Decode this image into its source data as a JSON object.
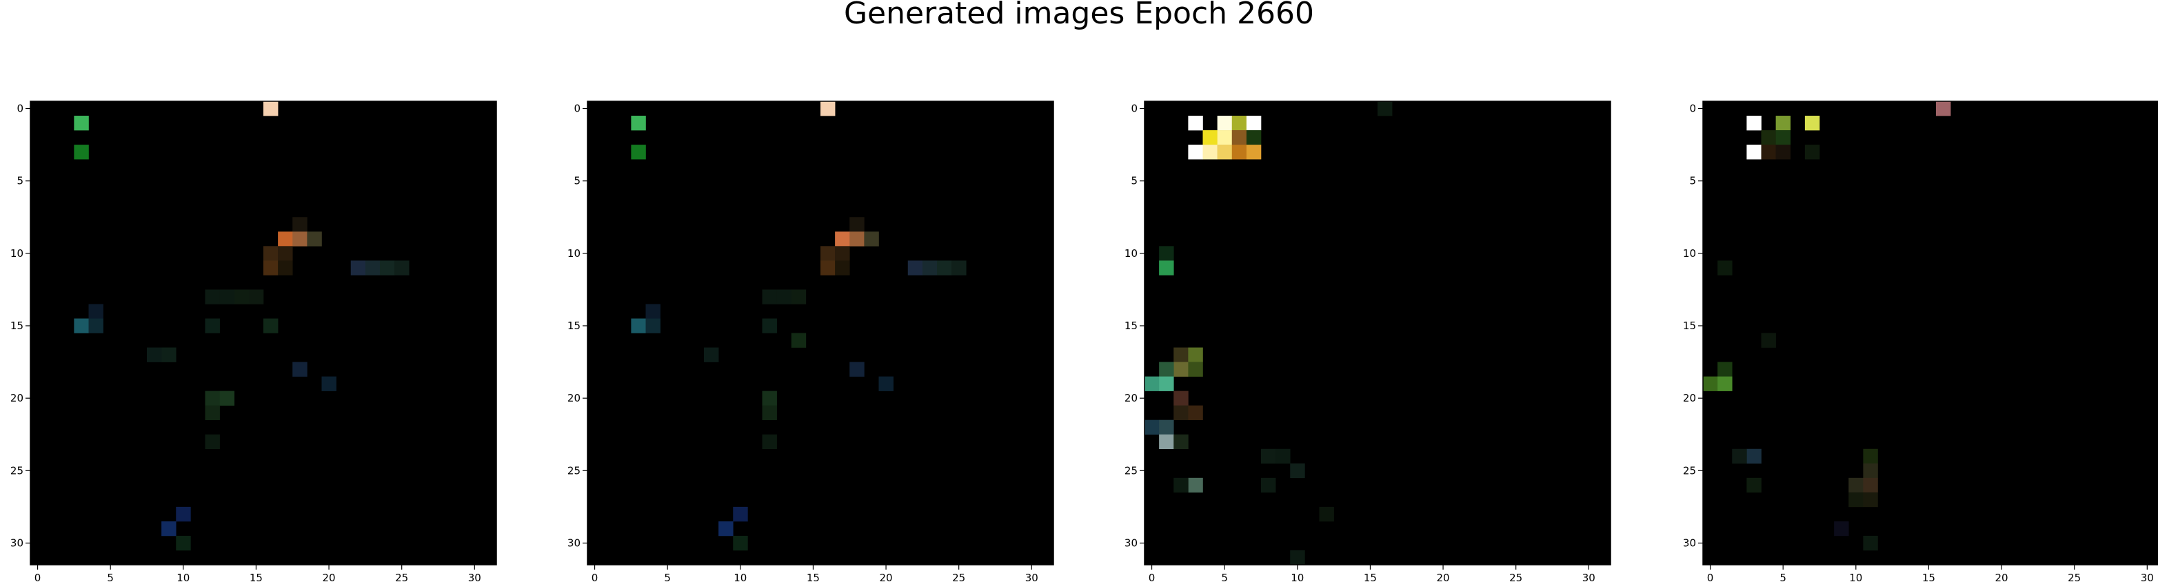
{
  "title": "Generated images Epoch 2660",
  "chart_data": [
    {
      "type": "heatmap",
      "title": "",
      "xlabel": "",
      "ylabel": "",
      "xlim": [
        -0.5,
        31.5
      ],
      "ylim": [
        31.5,
        -0.5
      ],
      "xticks": [
        0,
        5,
        10,
        15,
        20,
        25,
        30
      ],
      "yticks": [
        0,
        5,
        10,
        15,
        20,
        25,
        30
      ],
      "background": "#000000",
      "pixels": [
        {
          "x": 16,
          "y": 0,
          "color": "#f5d0b0"
        },
        {
          "x": 3,
          "y": 1,
          "color": "#3cb55a"
        },
        {
          "x": 3,
          "y": 3,
          "color": "#137a20"
        },
        {
          "x": 18,
          "y": 8,
          "color": "#1a150c"
        },
        {
          "x": 17,
          "y": 9,
          "color": "#c8642a"
        },
        {
          "x": 18,
          "y": 9,
          "color": "#9a6038"
        },
        {
          "x": 19,
          "y": 9,
          "color": "#3c3a24"
        },
        {
          "x": 16,
          "y": 10,
          "color": "#3c2610"
        },
        {
          "x": 17,
          "y": 10,
          "color": "#2a1c0c"
        },
        {
          "x": 16,
          "y": 11,
          "color": "#4a2c10"
        },
        {
          "x": 17,
          "y": 11,
          "color": "#1e1608"
        },
        {
          "x": 22,
          "y": 11,
          "color": "#1c2a40"
        },
        {
          "x": 23,
          "y": 11,
          "color": "#182a30"
        },
        {
          "x": 24,
          "y": 11,
          "color": "#142822"
        },
        {
          "x": 25,
          "y": 11,
          "color": "#10201a"
        },
        {
          "x": 12,
          "y": 13,
          "color": "#0c1a12"
        },
        {
          "x": 13,
          "y": 13,
          "color": "#0c1a12"
        },
        {
          "x": 14,
          "y": 13,
          "color": "#0e1c10"
        },
        {
          "x": 15,
          "y": 13,
          "color": "#0e1a10"
        },
        {
          "x": 4,
          "y": 14,
          "color": "#0c1a2a"
        },
        {
          "x": 3,
          "y": 15,
          "color": "#1a5a66"
        },
        {
          "x": 4,
          "y": 15,
          "color": "#0e2a34"
        },
        {
          "x": 12,
          "y": 15,
          "color": "#0c2018"
        },
        {
          "x": 16,
          "y": 15,
          "color": "#102818"
        },
        {
          "x": 8,
          "y": 17,
          "color": "#0c1c18"
        },
        {
          "x": 9,
          "y": 17,
          "color": "#0e2018"
        },
        {
          "x": 18,
          "y": 18,
          "color": "#122238"
        },
        {
          "x": 20,
          "y": 19,
          "color": "#0c2030"
        },
        {
          "x": 12,
          "y": 20,
          "color": "#16301a"
        },
        {
          "x": 13,
          "y": 20,
          "color": "#1a381e"
        },
        {
          "x": 12,
          "y": 21,
          "color": "#122614"
        },
        {
          "x": 12,
          "y": 23,
          "color": "#0c1a10"
        },
        {
          "x": 10,
          "y": 28,
          "color": "#0e2050"
        },
        {
          "x": 9,
          "y": 29,
          "color": "#102a60"
        },
        {
          "x": 10,
          "y": 30,
          "color": "#0c2414"
        }
      ]
    },
    {
      "type": "heatmap",
      "title": "",
      "xlabel": "",
      "ylabel": "",
      "xlim": [
        -0.5,
        31.5
      ],
      "ylim": [
        31.5,
        -0.5
      ],
      "xticks": [
        0,
        5,
        10,
        15,
        20,
        25,
        30
      ],
      "yticks": [
        0,
        5,
        10,
        15,
        20,
        25,
        30
      ],
      "background": "#000000",
      "pixels": [
        {
          "x": 16,
          "y": 0,
          "color": "#f5d0b0"
        },
        {
          "x": 3,
          "y": 1,
          "color": "#3cb55a"
        },
        {
          "x": 3,
          "y": 3,
          "color": "#137a20"
        },
        {
          "x": 18,
          "y": 8,
          "color": "#1a150c"
        },
        {
          "x": 17,
          "y": 9,
          "color": "#d07040"
        },
        {
          "x": 18,
          "y": 9,
          "color": "#9a6038"
        },
        {
          "x": 19,
          "y": 9,
          "color": "#3c3a24"
        },
        {
          "x": 16,
          "y": 10,
          "color": "#3c2610"
        },
        {
          "x": 17,
          "y": 10,
          "color": "#2a1c0c"
        },
        {
          "x": 16,
          "y": 11,
          "color": "#4a2c10"
        },
        {
          "x": 17,
          "y": 11,
          "color": "#1e1608"
        },
        {
          "x": 22,
          "y": 11,
          "color": "#1c2a40"
        },
        {
          "x": 23,
          "y": 11,
          "color": "#182a30"
        },
        {
          "x": 24,
          "y": 11,
          "color": "#142822"
        },
        {
          "x": 25,
          "y": 11,
          "color": "#10201a"
        },
        {
          "x": 12,
          "y": 13,
          "color": "#0c1a12"
        },
        {
          "x": 13,
          "y": 13,
          "color": "#0c1a12"
        },
        {
          "x": 14,
          "y": 13,
          "color": "#0e1c10"
        },
        {
          "x": 4,
          "y": 14,
          "color": "#0c1a2a"
        },
        {
          "x": 3,
          "y": 15,
          "color": "#1a5a66"
        },
        {
          "x": 4,
          "y": 15,
          "color": "#0e2a34"
        },
        {
          "x": 12,
          "y": 15,
          "color": "#0c2018"
        },
        {
          "x": 14,
          "y": 16,
          "color": "#122a14"
        },
        {
          "x": 8,
          "y": 17,
          "color": "#0c1c18"
        },
        {
          "x": 18,
          "y": 18,
          "color": "#122238"
        },
        {
          "x": 20,
          "y": 19,
          "color": "#0c2030"
        },
        {
          "x": 12,
          "y": 20,
          "color": "#16301a"
        },
        {
          "x": 12,
          "y": 21,
          "color": "#122614"
        },
        {
          "x": 12,
          "y": 23,
          "color": "#0c1a10"
        },
        {
          "x": 10,
          "y": 28,
          "color": "#0e2050"
        },
        {
          "x": 9,
          "y": 29,
          "color": "#102a60"
        },
        {
          "x": 10,
          "y": 30,
          "color": "#0c2414"
        }
      ]
    },
    {
      "type": "heatmap",
      "title": "",
      "xlabel": "",
      "ylabel": "",
      "xlim": [
        -0.5,
        31.5
      ],
      "ylim": [
        31.5,
        -0.5
      ],
      "xticks": [
        0,
        5,
        10,
        15,
        20,
        25,
        30
      ],
      "yticks": [
        0,
        5,
        10,
        15,
        20,
        25,
        30
      ],
      "background": "#000000",
      "pixels": [
        {
          "x": 16,
          "y": 0,
          "color": "#0c1a10"
        },
        {
          "x": 3,
          "y": 1,
          "color": "#ffffff"
        },
        {
          "x": 5,
          "y": 1,
          "color": "#fffde0"
        },
        {
          "x": 6,
          "y": 1,
          "color": "#a8b02a"
        },
        {
          "x": 7,
          "y": 1,
          "color": "#ffffff"
        },
        {
          "x": 4,
          "y": 2,
          "color": "#f0e020"
        },
        {
          "x": 5,
          "y": 2,
          "color": "#fff4a0"
        },
        {
          "x": 6,
          "y": 2,
          "color": "#8a5a20"
        },
        {
          "x": 7,
          "y": 2,
          "color": "#1a3a10"
        },
        {
          "x": 3,
          "y": 3,
          "color": "#ffffff"
        },
        {
          "x": 4,
          "y": 3,
          "color": "#fff0b0"
        },
        {
          "x": 5,
          "y": 3,
          "color": "#f0d060"
        },
        {
          "x": 6,
          "y": 3,
          "color": "#c07818"
        },
        {
          "x": 7,
          "y": 3,
          "color": "#e0a030"
        },
        {
          "x": 1,
          "y": 10,
          "color": "#0c2a14"
        },
        {
          "x": 1,
          "y": 11,
          "color": "#2a9a50"
        },
        {
          "x": 2,
          "y": 17,
          "color": "#3a3418"
        },
        {
          "x": 3,
          "y": 17,
          "color": "#5a7024"
        },
        {
          "x": 2,
          "y": 18,
          "color": "#6a6a30"
        },
        {
          "x": 3,
          "y": 18,
          "color": "#3a5018"
        },
        {
          "x": 1,
          "y": 18,
          "color": "#2a5a3a"
        },
        {
          "x": 0,
          "y": 19,
          "color": "#3a9a7a"
        },
        {
          "x": 1,
          "y": 19,
          "color": "#4ab08a"
        },
        {
          "x": 2,
          "y": 20,
          "color": "#4a2a20"
        },
        {
          "x": 2,
          "y": 21,
          "color": "#2a2010"
        },
        {
          "x": 3,
          "y": 21,
          "color": "#3a2410"
        },
        {
          "x": 0,
          "y": 22,
          "color": "#1a3a4a"
        },
        {
          "x": 1,
          "y": 22,
          "color": "#2a4a50"
        },
        {
          "x": 1,
          "y": 23,
          "color": "#8aa0a0"
        },
        {
          "x": 2,
          "y": 23,
          "color": "#1a2818"
        },
        {
          "x": 3,
          "y": 26,
          "color": "#4a6a5a"
        },
        {
          "x": 2,
          "y": 26,
          "color": "#0c1a10"
        },
        {
          "x": 8,
          "y": 24,
          "color": "#0e1c14"
        },
        {
          "x": 9,
          "y": 24,
          "color": "#0c1a12"
        },
        {
          "x": 10,
          "y": 25,
          "color": "#10201a"
        },
        {
          "x": 8,
          "y": 26,
          "color": "#0c1a12"
        },
        {
          "x": 12,
          "y": 28,
          "color": "#0c160c"
        },
        {
          "x": 10,
          "y": 31,
          "color": "#0c1a12"
        }
      ]
    },
    {
      "type": "heatmap",
      "title": "",
      "xlabel": "",
      "ylabel": "",
      "xlim": [
        -0.5,
        31.5
      ],
      "ylim": [
        31.5,
        -0.5
      ],
      "xticks": [
        0,
        5,
        10,
        15,
        20,
        25,
        30
      ],
      "yticks": [
        0,
        5,
        10,
        15,
        20,
        25,
        30
      ],
      "background": "#000000",
      "pixels": [
        {
          "x": 16,
          "y": 0,
          "color": "#a06468"
        },
        {
          "x": 3,
          "y": 1,
          "color": "#ffffff"
        },
        {
          "x": 5,
          "y": 1,
          "color": "#7a9a30"
        },
        {
          "x": 7,
          "y": 1,
          "color": "#d8e050"
        },
        {
          "x": 4,
          "y": 2,
          "color": "#1a2a0c"
        },
        {
          "x": 5,
          "y": 2,
          "color": "#1a3a12"
        },
        {
          "x": 3,
          "y": 3,
          "color": "#ffffff"
        },
        {
          "x": 4,
          "y": 3,
          "color": "#2a1a0a"
        },
        {
          "x": 5,
          "y": 3,
          "color": "#1a120a"
        },
        {
          "x": 7,
          "y": 3,
          "color": "#0e1a0c"
        },
        {
          "x": 1,
          "y": 11,
          "color": "#0c1a0c"
        },
        {
          "x": 4,
          "y": 16,
          "color": "#0c160c"
        },
        {
          "x": 1,
          "y": 18,
          "color": "#1a3a10"
        },
        {
          "x": 0,
          "y": 19,
          "color": "#3a6a1a"
        },
        {
          "x": 1,
          "y": 19,
          "color": "#4a8a2a"
        },
        {
          "x": 3,
          "y": 24,
          "color": "#1a3040"
        },
        {
          "x": 2,
          "y": 24,
          "color": "#0e1a14"
        },
        {
          "x": 3,
          "y": 26,
          "color": "#0e1c0e"
        },
        {
          "x": 11,
          "y": 24,
          "color": "#1a2a0c"
        },
        {
          "x": 11,
          "y": 25,
          "color": "#2a2a18"
        },
        {
          "x": 10,
          "y": 26,
          "color": "#2a2a1a"
        },
        {
          "x": 11,
          "y": 26,
          "color": "#3a2a1a"
        },
        {
          "x": 10,
          "y": 27,
          "color": "#141a0c"
        },
        {
          "x": 11,
          "y": 27,
          "color": "#1a1a0c"
        },
        {
          "x": 9,
          "y": 29,
          "color": "#0c0c1a"
        },
        {
          "x": 11,
          "y": 30,
          "color": "#0c1a10"
        }
      ]
    }
  ]
}
